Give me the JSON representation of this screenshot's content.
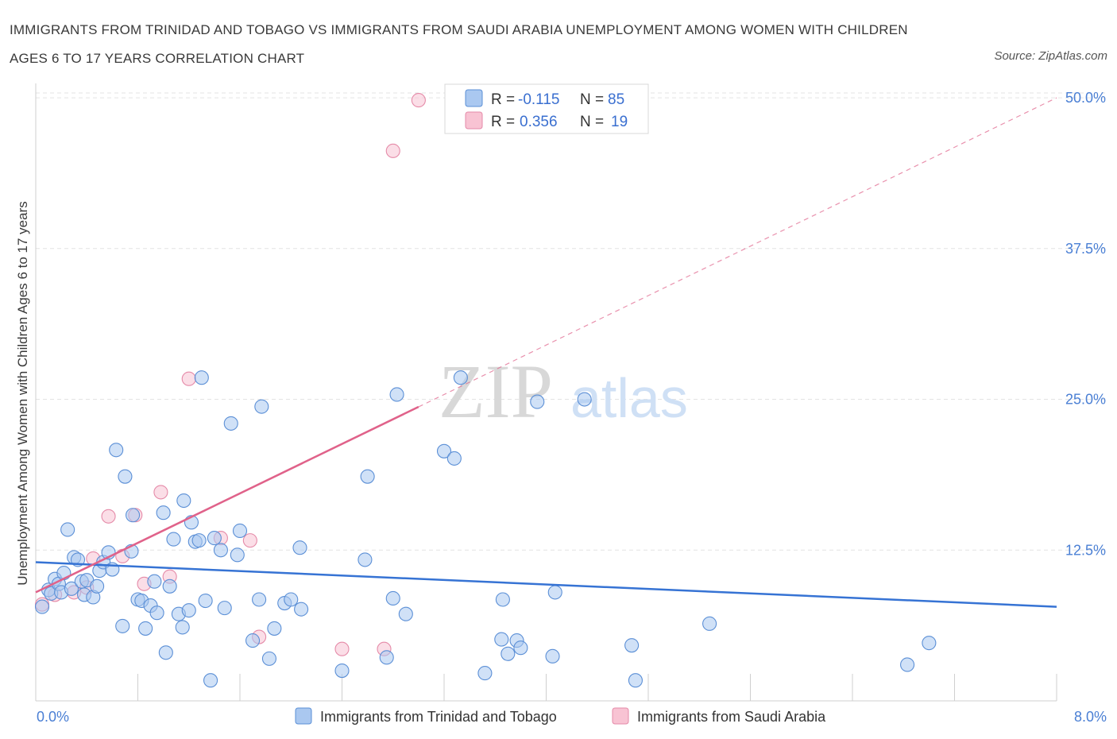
{
  "title": "IMMIGRANTS FROM TRINIDAD AND TOBAGO VS IMMIGRANTS FROM SAUDI ARABIA UNEMPLOYMENT AMONG WOMEN WITH CHILDREN AGES 6 TO 17 YEARS CORRELATION CHART",
  "source": "Source: ZipAtlas.com",
  "watermark": {
    "zip": "ZIP",
    "atlas": "atlas"
  },
  "legend": {
    "r_label": "R =",
    "n_label": "N =",
    "series1": {
      "r": "-0.115",
      "n": "85"
    },
    "series2": {
      "r": "0.356",
      "n": "19"
    }
  },
  "colors": {
    "series1_fill": "#aac8f0",
    "series1_stroke": "#5b8fd6",
    "series1_line": "#3673d4",
    "series2_fill": "#f8c3d3",
    "series2_stroke": "#e58aa8",
    "series2_line": "#e0628a",
    "axis_text": "#4a7fd4",
    "grid": "#e3e3e3"
  },
  "chart_data": {
    "type": "scatter",
    "title": "IMMIGRANTS FROM TRINIDAD AND TOBAGO VS IMMIGRANTS FROM SAUDI ARABIA UNEMPLOYMENT AMONG WOMEN WITH CHILDREN AGES 6 TO 17 YEARS CORRELATION CHART",
    "xlabel": "",
    "ylabel": "Unemployment Among Women with Children Ages 6 to 17 years",
    "xlim": [
      0,
      8
    ],
    "ylim": [
      0,
      50
    ],
    "x_tick_labels": [
      "0.0%",
      "8.0%"
    ],
    "y_ticks": [
      12.5,
      25.0,
      37.5,
      50.0
    ],
    "y_tick_labels": [
      "12.5%",
      "25.0%",
      "37.5%",
      "50.0%"
    ],
    "grid": true,
    "legend_position": "top-center",
    "series": [
      {
        "name": "Immigrants from Trinidad and Tobago",
        "points": [
          [
            0.05,
            7.8
          ],
          [
            0.1,
            9.2
          ],
          [
            0.12,
            8.9
          ],
          [
            0.15,
            10.1
          ],
          [
            0.18,
            9.7
          ],
          [
            0.2,
            9.0
          ],
          [
            0.22,
            10.6
          ],
          [
            0.25,
            14.2
          ],
          [
            0.28,
            9.3
          ],
          [
            0.3,
            11.9
          ],
          [
            0.33,
            11.7
          ],
          [
            0.36,
            9.9
          ],
          [
            0.38,
            8.8
          ],
          [
            0.4,
            10.0
          ],
          [
            0.45,
            8.6
          ],
          [
            0.48,
            9.5
          ],
          [
            0.5,
            10.8
          ],
          [
            0.53,
            11.5
          ],
          [
            0.57,
            12.3
          ],
          [
            0.6,
            10.9
          ],
          [
            0.63,
            20.8
          ],
          [
            0.68,
            6.2
          ],
          [
            0.7,
            18.6
          ],
          [
            0.75,
            12.4
          ],
          [
            0.76,
            15.4
          ],
          [
            0.8,
            8.4
          ],
          [
            0.83,
            8.3
          ],
          [
            0.86,
            6.0
          ],
          [
            0.9,
            7.9
          ],
          [
            0.93,
            9.9
          ],
          [
            0.95,
            7.3
          ],
          [
            1.0,
            15.6
          ],
          [
            1.02,
            4.0
          ],
          [
            1.05,
            9.5
          ],
          [
            1.08,
            13.4
          ],
          [
            1.12,
            7.2
          ],
          [
            1.15,
            6.1
          ],
          [
            1.16,
            16.6
          ],
          [
            1.2,
            7.5
          ],
          [
            1.22,
            14.8
          ],
          [
            1.25,
            13.2
          ],
          [
            1.28,
            13.3
          ],
          [
            1.3,
            26.8
          ],
          [
            1.33,
            8.3
          ],
          [
            1.37,
            1.7
          ],
          [
            1.4,
            13.5
          ],
          [
            1.45,
            12.5
          ],
          [
            1.48,
            7.7
          ],
          [
            1.53,
            23.0
          ],
          [
            1.58,
            12.1
          ],
          [
            1.6,
            14.1
          ],
          [
            1.7,
            5.0
          ],
          [
            1.75,
            8.4
          ],
          [
            1.77,
            24.4
          ],
          [
            1.83,
            3.5
          ],
          [
            1.87,
            6.0
          ],
          [
            1.95,
            8.1
          ],
          [
            2.0,
            8.4
          ],
          [
            2.08,
            7.6
          ],
          [
            2.07,
            12.7
          ],
          [
            2.4,
            2.5
          ],
          [
            2.58,
            11.7
          ],
          [
            2.6,
            18.6
          ],
          [
            2.75,
            3.6
          ],
          [
            2.8,
            8.5
          ],
          [
            2.83,
            25.4
          ],
          [
            2.9,
            7.2
          ],
          [
            3.2,
            20.7
          ],
          [
            3.28,
            20.1
          ],
          [
            3.33,
            26.8
          ],
          [
            3.52,
            2.3
          ],
          [
            3.66,
            8.4
          ],
          [
            3.65,
            5.1
          ],
          [
            3.7,
            3.9
          ],
          [
            3.77,
            5.0
          ],
          [
            3.8,
            4.4
          ],
          [
            3.93,
            24.8
          ],
          [
            4.05,
            3.7
          ],
          [
            4.07,
            9.0
          ],
          [
            4.3,
            25.0
          ],
          [
            4.67,
            4.6
          ],
          [
            4.7,
            1.7
          ],
          [
            5.28,
            6.4
          ],
          [
            6.83,
            3.0
          ],
          [
            7.0,
            4.8
          ]
        ],
        "trend": {
          "x": [
            0,
            8
          ],
          "y": [
            11.5,
            7.8
          ]
        }
      },
      {
        "name": "Immigrants from Saudi Arabia",
        "points": [
          [
            0.05,
            8.0
          ],
          [
            0.15,
            8.8
          ],
          [
            0.3,
            9.0
          ],
          [
            0.4,
            9.4
          ],
          [
            0.45,
            11.8
          ],
          [
            0.57,
            15.3
          ],
          [
            0.68,
            12.0
          ],
          [
            0.78,
            15.4
          ],
          [
            0.85,
            9.7
          ],
          [
            0.98,
            17.3
          ],
          [
            1.05,
            10.3
          ],
          [
            1.2,
            26.7
          ],
          [
            1.45,
            13.5
          ],
          [
            1.68,
            13.3
          ],
          [
            1.75,
            5.3
          ],
          [
            2.4,
            4.3
          ],
          [
            2.73,
            4.3
          ],
          [
            2.8,
            45.6
          ],
          [
            3.0,
            49.8
          ]
        ],
        "trend": {
          "x": [
            0,
            8
          ],
          "y": [
            9.0,
            50.0
          ]
        },
        "trend_solid_until_x": 3.0
      }
    ]
  }
}
